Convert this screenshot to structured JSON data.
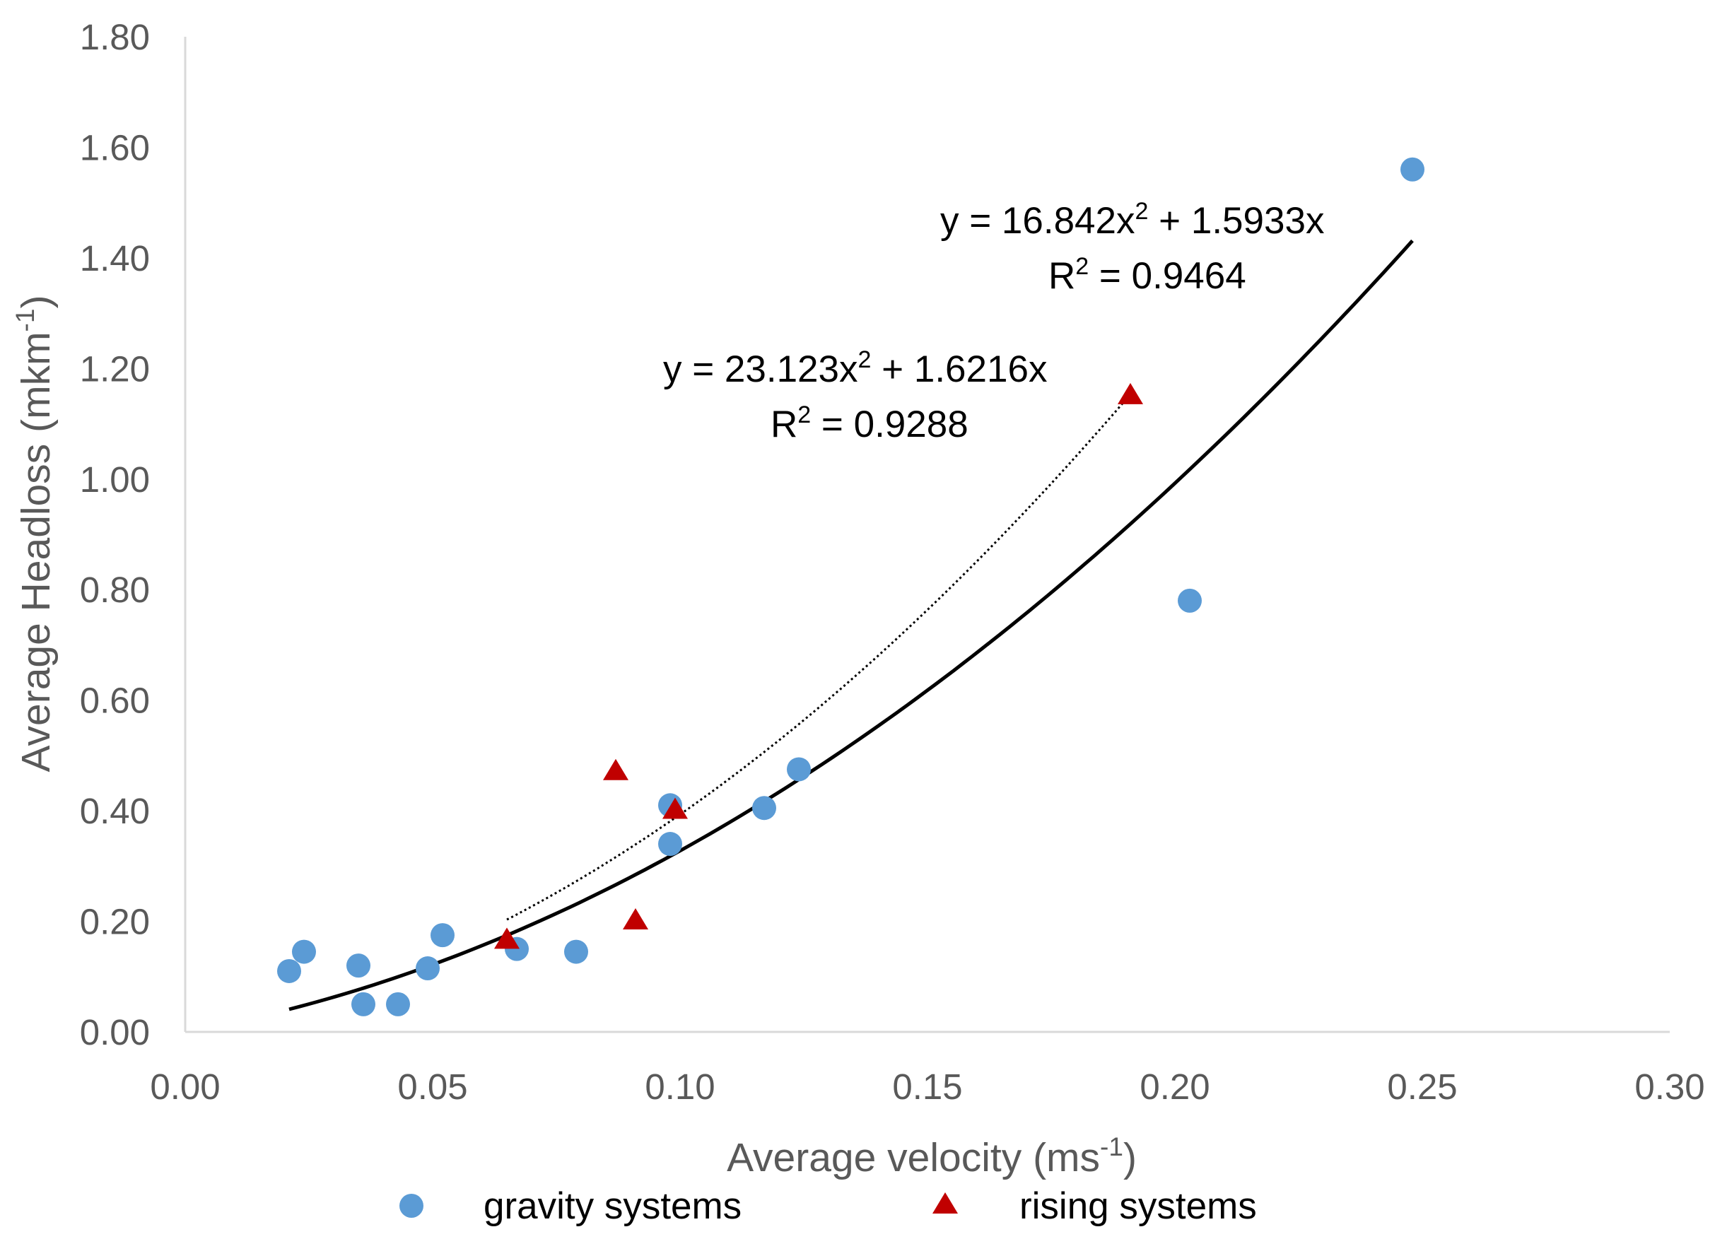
{
  "chart_data": {
    "type": "scatter",
    "title": "",
    "xlabel": "Average velocity (ms",
    "xlabel_sup": "-1",
    "xlabel_end": ")",
    "ylabel": "Average Headloss (mkm",
    "ylabel_sup": "-1",
    "ylabel_end": ")",
    "xlim": [
      0,
      0.3
    ],
    "ylim": [
      0,
      1.8
    ],
    "xticks": [
      "0.00",
      "0.05",
      "0.10",
      "0.15",
      "0.20",
      "0.25",
      "0.30"
    ],
    "yticks": [
      "0.00",
      "0.20",
      "0.40",
      "0.60",
      "0.80",
      "1.00",
      "1.20",
      "1.40",
      "1.60",
      "1.80"
    ],
    "series": [
      {
        "name": "gravity systems",
        "marker": "circle",
        "color": "#5B9BD5",
        "points": [
          [
            0.021,
            0.11
          ],
          [
            0.024,
            0.145
          ],
          [
            0.035,
            0.12
          ],
          [
            0.036,
            0.05
          ],
          [
            0.043,
            0.05
          ],
          [
            0.049,
            0.115
          ],
          [
            0.052,
            0.175
          ],
          [
            0.067,
            0.15
          ],
          [
            0.079,
            0.145
          ],
          [
            0.098,
            0.41
          ],
          [
            0.098,
            0.34
          ],
          [
            0.117,
            0.405
          ],
          [
            0.124,
            0.475
          ],
          [
            0.203,
            0.78
          ],
          [
            0.248,
            1.56
          ]
        ]
      },
      {
        "name": "rising systems",
        "marker": "triangle",
        "color": "#C00000",
        "points": [
          [
            0.065,
            0.165
          ],
          [
            0.087,
            0.47
          ],
          [
            0.091,
            0.2
          ],
          [
            0.099,
            0.4
          ],
          [
            0.191,
            1.15
          ]
        ]
      }
    ],
    "trendlines": [
      {
        "series": "gravity systems",
        "style": "solid",
        "a": 16.842,
        "b": 1.5933,
        "x_range": [
          0.021,
          0.248
        ],
        "equation_prefix": "y = 16.842x",
        "equation_sup": "2",
        "equation_suffix": " + 1.5933x",
        "r2_prefix": "R",
        "r2_sup": "2",
        "r2_suffix": " = 0.9464"
      },
      {
        "series": "rising systems",
        "style": "dotted",
        "a": 23.123,
        "b": 1.6216,
        "x_range": [
          0.065,
          0.191
        ],
        "equation_prefix": "y = 23.123x",
        "equation_sup": "2",
        "equation_suffix": " + 1.6216x",
        "r2_prefix": "R",
        "r2_sup": "2",
        "r2_suffix": " = 0.9288"
      }
    ],
    "legend": {
      "position": "bottom",
      "items": [
        "gravity systems",
        "rising systems"
      ]
    },
    "colors": {
      "axis": "#D9D9D9",
      "text": "#595959",
      "trend": "#000000"
    }
  }
}
